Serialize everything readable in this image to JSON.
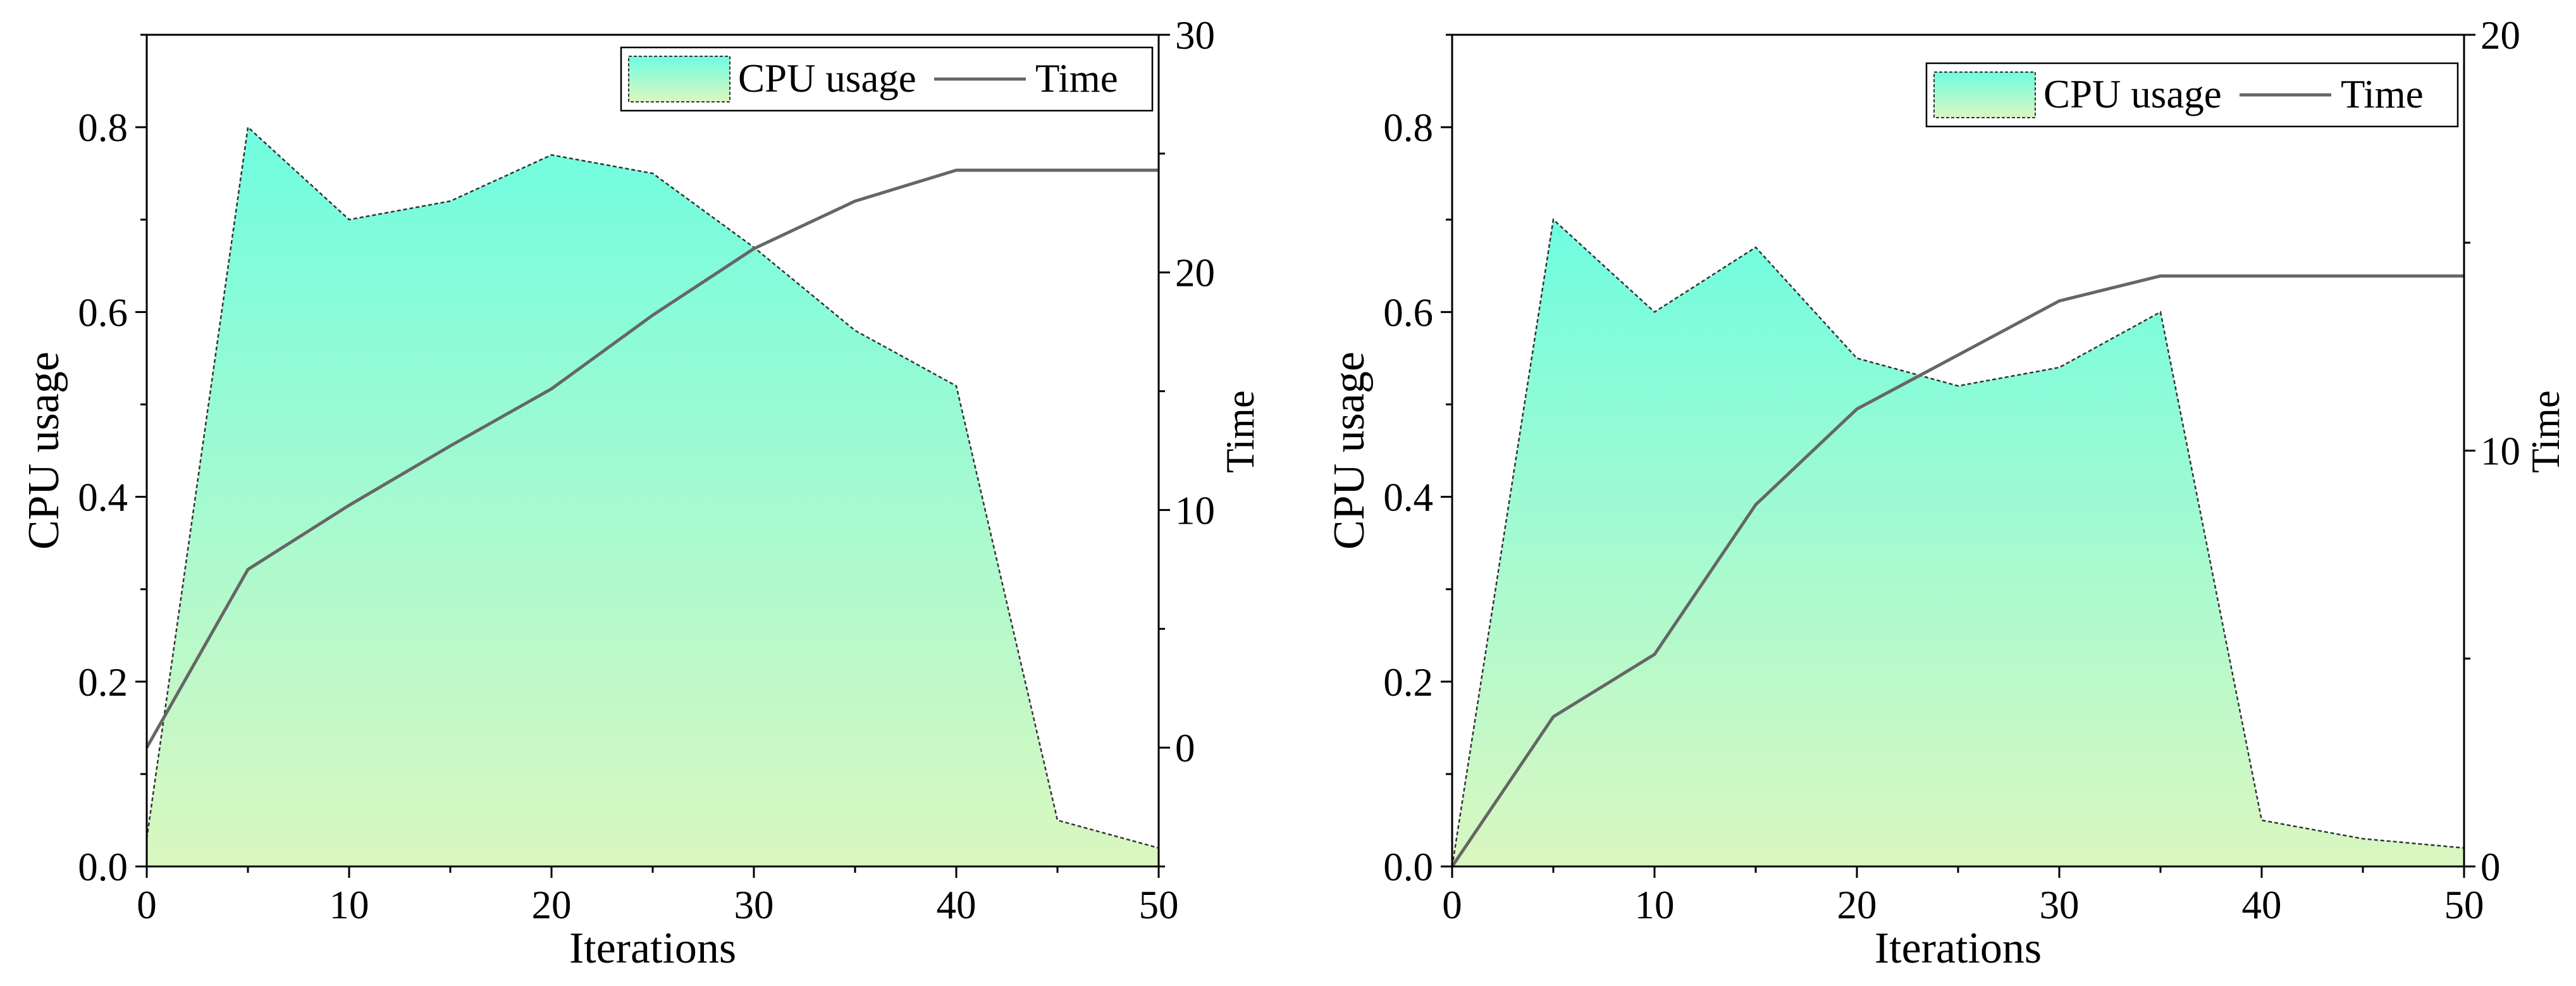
{
  "colors": {
    "area_top": "#6ffde0",
    "area_bottom": "#daf7c0",
    "time_line": "#666666",
    "axis": "#000000"
  },
  "chart_data": [
    {
      "type": "area",
      "name": "left",
      "x": [
        0,
        5,
        10,
        15,
        20,
        25,
        30,
        35,
        40,
        45,
        50
      ],
      "series": [
        {
          "name": "CPU usage",
          "axis": "left",
          "values": [
            0.03,
            0.8,
            0.7,
            0.72,
            0.77,
            0.75,
            0.67,
            0.58,
            0.52,
            0.05,
            0.02
          ]
        },
        {
          "name": "Time",
          "axis": "right",
          "x": [
            0,
            5,
            10,
            15,
            20,
            25,
            30,
            35,
            40,
            45,
            50
          ],
          "values": [
            0,
            7.5,
            10.2,
            12.7,
            15.1,
            18.2,
            21,
            23,
            24.3,
            24.3,
            24.3
          ]
        }
      ],
      "xlabel": "Iterations",
      "ylabel": "CPU usage",
      "y2label": "Time",
      "xlim": [
        0,
        50
      ],
      "ylim": [
        0,
        0.9
      ],
      "y2lim": [
        -5,
        30
      ],
      "xticks": [
        0,
        10,
        20,
        30,
        40,
        50
      ],
      "xtick_labels": [
        "0",
        "10",
        "20",
        "30",
        "40",
        "50"
      ],
      "yticks": [
        0,
        0.2,
        0.4,
        0.6,
        0.8
      ],
      "ytick_labels": [
        "0.0",
        "0.2",
        "0.4",
        "0.6",
        "0.8"
      ],
      "y2ticks": [
        0,
        10,
        20,
        30
      ],
      "y2tick_labels": [
        "0",
        "10",
        "20",
        "30"
      ],
      "legend": [
        "CPU usage",
        "Time"
      ],
      "legend_loc": "top-right"
    },
    {
      "type": "area",
      "name": "right",
      "x": [
        0,
        5,
        10,
        15,
        20,
        25,
        30,
        35,
        40,
        45,
        50
      ],
      "series": [
        {
          "name": "CPU usage",
          "axis": "left",
          "values": [
            0.0,
            0.7,
            0.6,
            0.67,
            0.55,
            0.52,
            0.54,
            0.6,
            0.05,
            0.03,
            0.02
          ]
        },
        {
          "name": "Time",
          "axis": "right",
          "x": [
            0,
            5,
            10,
            15,
            20,
            25,
            30,
            35,
            40,
            45,
            50
          ],
          "values": [
            0,
            3.6,
            5.1,
            8.7,
            11,
            12.3,
            13.6,
            14.2,
            14.2,
            14.2,
            14.2
          ]
        }
      ],
      "xlabel": "Iterations",
      "ylabel": "CPU usage",
      "y2label": "Time",
      "xlim": [
        0,
        50
      ],
      "ylim": [
        0,
        0.9
      ],
      "y2lim": [
        0,
        20
      ],
      "xticks": [
        0,
        10,
        20,
        30,
        40,
        50
      ],
      "xtick_labels": [
        "0",
        "10",
        "20",
        "30",
        "40",
        "50"
      ],
      "yticks": [
        0,
        0.2,
        0.4,
        0.6,
        0.8
      ],
      "ytick_labels": [
        "0.0",
        "0.2",
        "0.4",
        "0.6",
        "0.8"
      ],
      "y2ticks": [
        0,
        10,
        20
      ],
      "y2tick_labels": [
        "0",
        "10",
        "20"
      ],
      "legend": [
        "CPU usage",
        "Time"
      ],
      "legend_loc": "top-right"
    }
  ]
}
